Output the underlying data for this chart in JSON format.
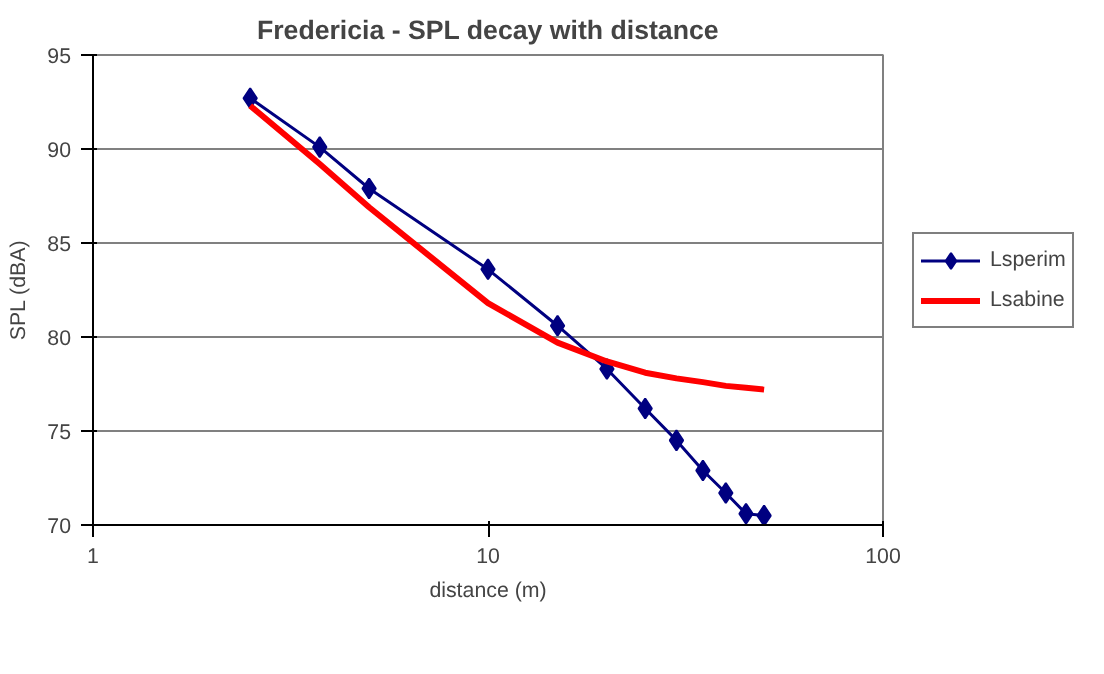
{
  "chart_data": {
    "type": "line",
    "title": "Fredericia - SPL decay with distance",
    "xlabel": "distance (m)",
    "ylabel": "SPL (dBA)",
    "log": "x",
    "xlim": [
      1,
      100
    ],
    "xticks": [
      1,
      10,
      100
    ],
    "ylim": [
      70,
      95
    ],
    "yticks": [
      70,
      75,
      80,
      85,
      90,
      95
    ],
    "grid": "y",
    "legend": "right",
    "series": [
      {
        "name": "Lsperim",
        "color": "#000080",
        "marker": "diamond",
        "x": [
          2.5,
          3.75,
          5,
          10,
          15,
          20,
          25,
          30,
          35,
          40,
          45,
          50
        ],
        "values": [
          92.7,
          90.1,
          87.9,
          83.6,
          80.6,
          78.3,
          76.2,
          74.5,
          72.9,
          71.7,
          70.6,
          70.5
        ]
      },
      {
        "name": "Lsabine",
        "color": "#ff0000",
        "marker": "none",
        "x": [
          2.5,
          3.75,
          5,
          10,
          15,
          20,
          25,
          30,
          35,
          40,
          45,
          50
        ],
        "values": [
          92.3,
          89.2,
          86.9,
          81.8,
          79.7,
          78.7,
          78.1,
          77.8,
          77.6,
          77.4,
          77.3,
          77.2
        ]
      }
    ]
  }
}
